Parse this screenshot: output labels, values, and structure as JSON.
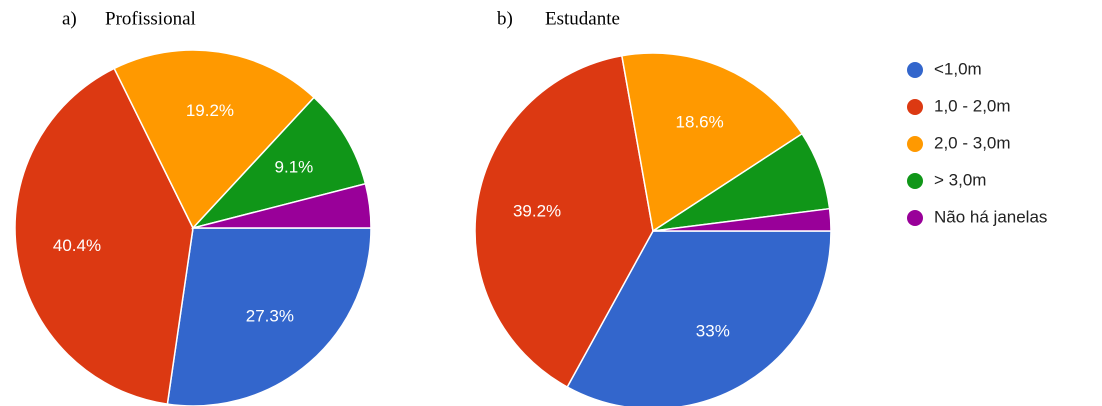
{
  "legend": {
    "categories": [
      "<1,0m",
      "1,0 - 2,0m",
      "2,0 - 3,0m",
      "> 3,0m",
      "Não há janelas"
    ],
    "colors": [
      "#3366cc",
      "#dc3912",
      "#ff9900",
      "#109618",
      "#990099"
    ]
  },
  "chart_data": [
    {
      "type": "pie",
      "label": "a)",
      "title": "Profissional",
      "values": [
        27.3,
        40.4,
        19.2,
        9.1,
        4.0
      ],
      "value_labels": [
        "27.3%",
        "40.4%",
        "19.2%",
        "9.1%",
        null
      ]
    },
    {
      "type": "pie",
      "label": "b)",
      "title": "Estudante",
      "values": [
        33,
        39.2,
        18.6,
        7.2,
        2.0
      ],
      "value_labels": [
        "33%",
        "39.2%",
        "18.6%",
        null,
        null
      ]
    }
  ]
}
